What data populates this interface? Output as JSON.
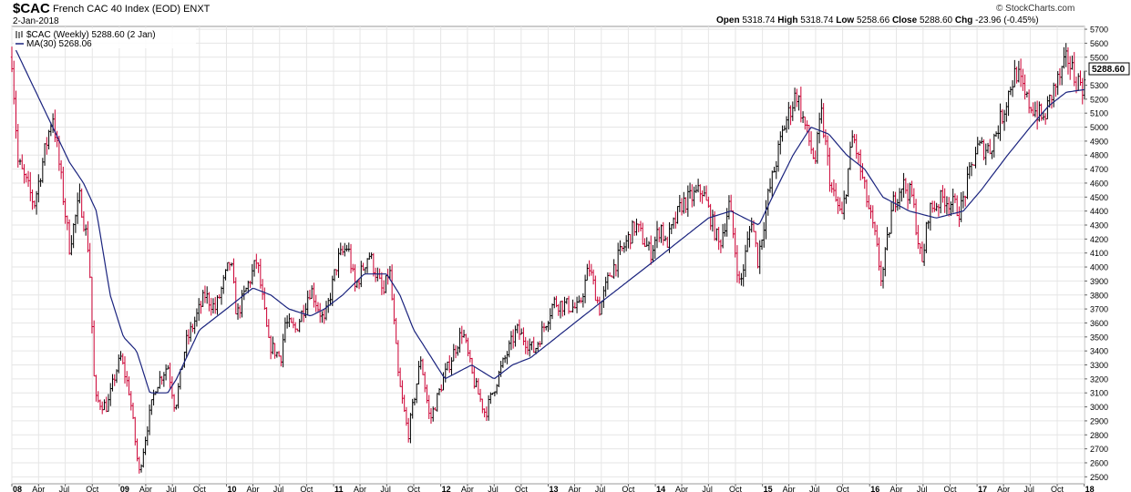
{
  "header": {
    "symbol": "$CAC",
    "name": "French CAC 40 Index (EOD)",
    "exchange": "ENXT",
    "date": "2-Jan-2018",
    "brand": "© StockCharts.com",
    "open_label": "Open",
    "open": "5318.74",
    "high_label": "High",
    "high": "5318.74",
    "low_label": "Low",
    "low": "5258.66",
    "close_label": "Close",
    "close": "5288.60",
    "chg_label": "Chg",
    "chg": "-23.96 (-0.45%)"
  },
  "legend": {
    "price_label": "$CAC (Weekly) 5288.60 (2 Jan)",
    "ma_label": "MA(30) 5268.06"
  },
  "colors": {
    "up": "#000000",
    "down": "#cc0033",
    "ma": "#1a237e",
    "grid": "#e6e6e6"
  },
  "chart_data": {
    "type": "line",
    "title": "$CAC French CAC 40 Index (EOD)",
    "ylabel": "",
    "x_start": "2008-01-01",
    "x_end": "2018-01-02",
    "ylim": [
      2450,
      5720
    ],
    "yticks": [
      2500,
      2600,
      2700,
      2800,
      2900,
      3000,
      3100,
      3200,
      3300,
      3400,
      3500,
      3600,
      3700,
      3800,
      3900,
      4000,
      4100,
      4200,
      4300,
      4400,
      4500,
      4600,
      4700,
      4800,
      4900,
      5000,
      5100,
      5200,
      5300,
      5400,
      5500,
      5600,
      5700
    ],
    "xticks": [
      {
        "label": "08",
        "date": "2008-01-01",
        "major": true
      },
      {
        "label": "Apr",
        "date": "2008-04-01"
      },
      {
        "label": "Jul",
        "date": "2008-07-01"
      },
      {
        "label": "Oct",
        "date": "2008-10-01"
      },
      {
        "label": "09",
        "date": "2009-01-01",
        "major": true
      },
      {
        "label": "Apr",
        "date": "2009-04-01"
      },
      {
        "label": "Jul",
        "date": "2009-07-01"
      },
      {
        "label": "Oct",
        "date": "2009-10-01"
      },
      {
        "label": "10",
        "date": "2010-01-01",
        "major": true
      },
      {
        "label": "Apr",
        "date": "2010-04-01"
      },
      {
        "label": "Jul",
        "date": "2010-07-01"
      },
      {
        "label": "Oct",
        "date": "2010-10-01"
      },
      {
        "label": "11",
        "date": "2011-01-01",
        "major": true
      },
      {
        "label": "Apr",
        "date": "2011-04-01"
      },
      {
        "label": "Jul",
        "date": "2011-07-01"
      },
      {
        "label": "Oct",
        "date": "2011-10-01"
      },
      {
        "label": "12",
        "date": "2012-01-01",
        "major": true
      },
      {
        "label": "Apr",
        "date": "2012-04-01"
      },
      {
        "label": "Jul",
        "date": "2012-07-01"
      },
      {
        "label": "Oct",
        "date": "2012-10-01"
      },
      {
        "label": "13",
        "date": "2013-01-01",
        "major": true
      },
      {
        "label": "Apr",
        "date": "2013-04-01"
      },
      {
        "label": "Jul",
        "date": "2013-07-01"
      },
      {
        "label": "Oct",
        "date": "2013-10-01"
      },
      {
        "label": "14",
        "date": "2014-01-01",
        "major": true
      },
      {
        "label": "Apr",
        "date": "2014-04-01"
      },
      {
        "label": "Jul",
        "date": "2014-07-01"
      },
      {
        "label": "Oct",
        "date": "2014-10-01"
      },
      {
        "label": "15",
        "date": "2015-01-01",
        "major": true
      },
      {
        "label": "Apr",
        "date": "2015-04-01"
      },
      {
        "label": "Jul",
        "date": "2015-07-01"
      },
      {
        "label": "Oct",
        "date": "2015-10-01"
      },
      {
        "label": "16",
        "date": "2016-01-01",
        "major": true
      },
      {
        "label": "Apr",
        "date": "2016-04-01"
      },
      {
        "label": "Jul",
        "date": "2016-07-01"
      },
      {
        "label": "Oct",
        "date": "2016-10-01"
      },
      {
        "label": "17",
        "date": "2017-01-01",
        "major": true
      },
      {
        "label": "Apr",
        "date": "2017-04-01"
      },
      {
        "label": "Jul",
        "date": "2017-07-01"
      },
      {
        "label": "Oct",
        "date": "2017-10-01"
      },
      {
        "label": "18",
        "date": "2018-01-01",
        "major": true
      }
    ],
    "price_points": [
      [
        "2008-01-01",
        5500
      ],
      [
        "2008-01-22",
        4750
      ],
      [
        "2008-03-17",
        4450
      ],
      [
        "2008-05-19",
        5100
      ],
      [
        "2008-07-15",
        4150
      ],
      [
        "2008-08-20",
        4500
      ],
      [
        "2008-09-20",
        4100
      ],
      [
        "2008-10-10",
        3050
      ],
      [
        "2008-11-21",
        3000
      ],
      [
        "2008-12-20",
        3250
      ],
      [
        "2009-01-06",
        3350
      ],
      [
        "2009-02-05",
        3100
      ],
      [
        "2009-03-09",
        2520
      ],
      [
        "2009-04-10",
        2900
      ],
      [
        "2009-05-05",
        3150
      ],
      [
        "2009-06-15",
        3300
      ],
      [
        "2009-07-10",
        2990
      ],
      [
        "2009-08-15",
        3450
      ],
      [
        "2009-10-20",
        3800
      ],
      [
        "2009-11-25",
        3700
      ],
      [
        "2010-01-15",
        4050
      ],
      [
        "2010-02-05",
        3650
      ],
      [
        "2010-04-15",
        4050
      ],
      [
        "2010-05-25",
        3450
      ],
      [
        "2010-07-05",
        3350
      ],
      [
        "2010-07-20",
        3600
      ],
      [
        "2010-08-25",
        3550
      ],
      [
        "2010-10-15",
        3850
      ],
      [
        "2010-11-30",
        3600
      ],
      [
        "2011-01-15",
        4050
      ],
      [
        "2011-02-18",
        4150
      ],
      [
        "2011-03-15",
        3850
      ],
      [
        "2011-05-01",
        4100
      ],
      [
        "2011-06-20",
        3800
      ],
      [
        "2011-07-10",
        4000
      ],
      [
        "2011-08-10",
        3200
      ],
      [
        "2011-09-12",
        2800
      ],
      [
        "2011-10-25",
        3350
      ],
      [
        "2011-11-25",
        2900
      ],
      [
        "2012-01-10",
        3200
      ],
      [
        "2012-03-15",
        3550
      ],
      [
        "2012-04-20",
        3200
      ],
      [
        "2012-06-01",
        2950
      ],
      [
        "2012-07-20",
        3250
      ],
      [
        "2012-09-15",
        3550
      ],
      [
        "2012-11-15",
        3400
      ],
      [
        "2013-01-20",
        3750
      ],
      [
        "2013-04-15",
        3700
      ],
      [
        "2013-05-20",
        4000
      ],
      [
        "2013-06-25",
        3700
      ],
      [
        "2013-07-30",
        3950
      ],
      [
        "2013-10-25",
        4300
      ],
      [
        "2013-12-15",
        4100
      ],
      [
        "2014-01-20",
        4300
      ],
      [
        "2014-02-05",
        4150
      ],
      [
        "2014-04-01",
        4450
      ],
      [
        "2014-06-10",
        4550
      ],
      [
        "2014-08-07",
        4150
      ],
      [
        "2014-09-10",
        4450
      ],
      [
        "2014-10-16",
        3850
      ],
      [
        "2014-11-25",
        4350
      ],
      [
        "2014-12-16",
        4050
      ],
      [
        "2015-01-20",
        4500
      ],
      [
        "2015-03-15",
        5000
      ],
      [
        "2015-04-27",
        5250
      ],
      [
        "2015-05-20",
        5050
      ],
      [
        "2015-06-29",
        4750
      ],
      [
        "2015-07-20",
        5100
      ],
      [
        "2015-08-24",
        4550
      ],
      [
        "2015-09-29",
        4350
      ],
      [
        "2015-11-05",
        4950
      ],
      [
        "2015-12-15",
        4550
      ],
      [
        "2016-01-20",
        4200
      ],
      [
        "2016-02-11",
        3900
      ],
      [
        "2016-03-20",
        4450
      ],
      [
        "2016-04-20",
        4600
      ],
      [
        "2016-05-25",
        4500
      ],
      [
        "2016-06-27",
        4000
      ],
      [
        "2016-07-20",
        4400
      ],
      [
        "2016-09-10",
        4500
      ],
      [
        "2016-11-05",
        4400
      ],
      [
        "2016-12-30",
        4850
      ],
      [
        "2017-02-15",
        4850
      ],
      [
        "2017-03-30",
        5100
      ],
      [
        "2017-04-25",
        5300
      ],
      [
        "2017-05-15",
        5400
      ],
      [
        "2017-06-15",
        5200
      ],
      [
        "2017-08-15",
        5050
      ],
      [
        "2017-09-15",
        5250
      ],
      [
        "2017-10-20",
        5400
      ],
      [
        "2017-11-05",
        5500
      ],
      [
        "2017-12-01",
        5350
      ],
      [
        "2018-01-02",
        5288.6
      ]
    ],
    "ma30_points": [
      [
        "2008-01-15",
        5550
      ],
      [
        "2008-04-15",
        5150
      ],
      [
        "2008-07-15",
        4750
      ],
      [
        "2008-09-01",
        4600
      ],
      [
        "2008-10-15",
        4400
      ],
      [
        "2008-12-01",
        3800
      ],
      [
        "2009-01-15",
        3500
      ],
      [
        "2009-03-01",
        3400
      ],
      [
        "2009-04-15",
        3100
      ],
      [
        "2009-06-15",
        3100
      ],
      [
        "2009-07-15",
        3200
      ],
      [
        "2009-10-01",
        3550
      ],
      [
        "2010-01-01",
        3700
      ],
      [
        "2010-04-01",
        3850
      ],
      [
        "2010-06-01",
        3800
      ],
      [
        "2010-08-01",
        3700
      ],
      [
        "2010-10-15",
        3650
      ],
      [
        "2010-12-01",
        3700
      ],
      [
        "2011-02-01",
        3800
      ],
      [
        "2011-04-15",
        3950
      ],
      [
        "2011-07-01",
        3950
      ],
      [
        "2011-08-15",
        3800
      ],
      [
        "2011-10-01",
        3550
      ],
      [
        "2011-12-01",
        3350
      ],
      [
        "2012-01-15",
        3200
      ],
      [
        "2012-03-01",
        3250
      ],
      [
        "2012-04-15",
        3300
      ],
      [
        "2012-07-01",
        3200
      ],
      [
        "2012-09-01",
        3300
      ],
      [
        "2012-11-01",
        3350
      ],
      [
        "2013-01-01",
        3450
      ],
      [
        "2013-04-01",
        3600
      ],
      [
        "2013-07-01",
        3750
      ],
      [
        "2013-10-01",
        3900
      ],
      [
        "2014-01-01",
        4050
      ],
      [
        "2014-04-01",
        4200
      ],
      [
        "2014-07-01",
        4350
      ],
      [
        "2014-09-15",
        4400
      ],
      [
        "2014-11-01",
        4350
      ],
      [
        "2014-12-20",
        4300
      ],
      [
        "2015-02-15",
        4550
      ],
      [
        "2015-04-15",
        4800
      ],
      [
        "2015-06-15",
        5000
      ],
      [
        "2015-08-15",
        4950
      ],
      [
        "2015-10-15",
        4800
      ],
      [
        "2015-12-15",
        4700
      ],
      [
        "2016-02-15",
        4500
      ],
      [
        "2016-05-15",
        4400
      ],
      [
        "2016-08-15",
        4350
      ],
      [
        "2016-11-15",
        4400
      ],
      [
        "2017-01-15",
        4550
      ],
      [
        "2017-04-15",
        4800
      ],
      [
        "2017-07-01",
        5000
      ],
      [
        "2017-09-01",
        5150
      ],
      [
        "2017-11-01",
        5250
      ],
      [
        "2018-01-02",
        5268.06
      ]
    ]
  }
}
